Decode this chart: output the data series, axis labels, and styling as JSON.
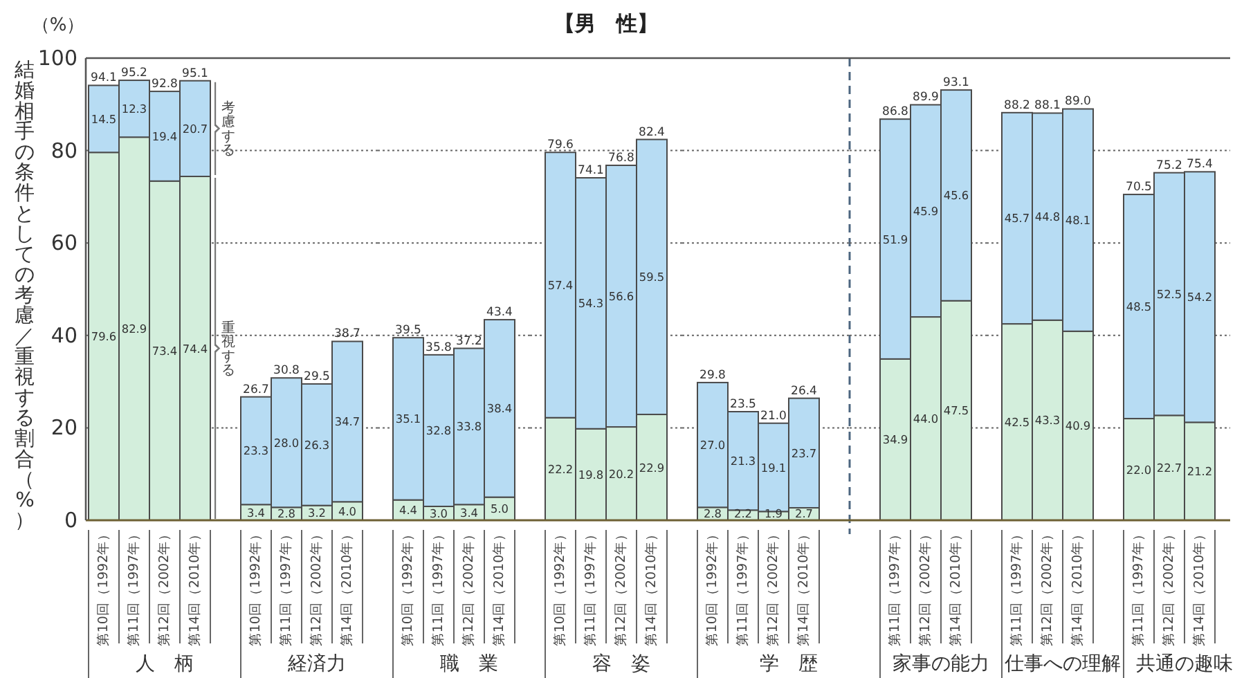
{
  "chart_data": [
    {
      "type": "bar",
      "ylabel": "結婚相手の条件としての考慮／重視する割合（%）",
      "xlabel": "人　柄",
      "annotations": [
        "（%）"
      ],
      "categories": [
        "第10回（1992年）",
        "第11回（1997年）",
        "第12回（2002年）",
        "第14回（2010年）"
      ],
      "series": [
        {
          "name": "重視する",
          "color": "#d3eedc",
          "values": [
            79.6,
            82.9,
            73.4,
            74.4
          ],
          "value_labels": [
            "79.6",
            "82.9",
            "73.4",
            "74.4"
          ]
        },
        {
          "name": "考慮する",
          "color": "#b7dcf3",
          "values": [
            14.5,
            12.3,
            19.4,
            20.7
          ],
          "value_labels": [
            "14.5",
            "12.3",
            "19.4",
            "20.7"
          ]
        }
      ],
      "stacked": true,
      "ylim": [
        0,
        100
      ],
      "yticks": [
        0,
        20,
        40,
        60,
        80,
        100
      ],
      "grid": "y",
      "totals": [
        "94.1",
        "95.2",
        "92.8",
        "95.1"
      ]
    },
    {
      "type": "bar",
      "xlabel": "経済力",
      "categories": [
        "第10回（1992年）",
        "第11回（1997年）",
        "第12回（2002年）",
        "第14回（2010年）"
      ],
      "series": [
        {
          "color": "#d3eedc",
          "values": [
            3.4,
            2.8,
            3.2,
            4.0
          ],
          "value_labels": [
            "3.4",
            "2.8",
            "3.2",
            "4.0"
          ]
        },
        {
          "color": "#b7dcf3",
          "values": [
            23.3,
            28.0,
            26.3,
            34.7
          ],
          "value_labels": [
            "23.3",
            "28.0",
            "26.3",
            "34.7"
          ]
        }
      ],
      "stacked": true,
      "ylim": [
        0,
        100
      ],
      "yticks": [
        0,
        20,
        40,
        60,
        80,
        100
      ],
      "grid": "y",
      "tick_labels": "x",
      "totals": [
        "26.7",
        "30.8",
        "29.5",
        "38.7"
      ]
    },
    {
      "type": "bar",
      "xlabel": "職　業",
      "categories": [
        "第10回（1992年）",
        "第11回（1997年）",
        "第12回（2002年）",
        "第14回（2010年）"
      ],
      "series": [
        {
          "color": "#d3eedc",
          "values": [
            4.4,
            3.0,
            3.4,
            5.0
          ],
          "value_labels": [
            "4.4",
            "3.0",
            "3.4",
            "5.0"
          ]
        },
        {
          "color": "#b7dcf3",
          "values": [
            35.1,
            32.8,
            33.8,
            38.4
          ],
          "value_labels": [
            "35.1",
            "32.8",
            "33.8",
            "38.4"
          ]
        }
      ],
      "stacked": true,
      "ylim": [
        0,
        100
      ],
      "yticks": [
        0,
        20,
        40,
        60,
        80,
        100
      ],
      "grid": "y",
      "tick_labels": "x",
      "totals": [
        "39.5",
        "35.8",
        "37.2",
        "43.4"
      ]
    },
    {
      "type": "bar",
      "title": "【男　性】",
      "xlabel": "容　姿",
      "categories": [
        "第10回（1992年）",
        "第11回（1997年）",
        "第12回（2002年）",
        "第14回（2010年）"
      ],
      "series": [
        {
          "color": "#d3eedc",
          "values": [
            22.2,
            19.8,
            20.2,
            22.9
          ],
          "value_labels": [
            "22.2",
            "19.8",
            "20.2",
            "22.9"
          ]
        },
        {
          "color": "#b7dcf3",
          "values": [
            57.4,
            54.3,
            56.6,
            59.5
          ],
          "value_labels": [
            "57.4",
            "54.3",
            "56.6",
            "59.5"
          ]
        }
      ],
      "stacked": true,
      "ylim": [
        0,
        100
      ],
      "yticks": [
        0,
        20,
        40,
        60,
        80,
        100
      ],
      "grid": "y",
      "tick_labels": "x",
      "totals": [
        "79.6",
        "74.1",
        "76.8",
        "82.4"
      ]
    },
    {
      "type": "bar",
      "xlabel": "学　歴",
      "categories": [
        "第10回（1992年）",
        "第11回（1997年）",
        "第12回（2002年）",
        "第14回（2010年）"
      ],
      "series": [
        {
          "color": "#d3eedc",
          "values": [
            2.8,
            2.2,
            1.9,
            2.7
          ],
          "value_labels": [
            "2.8",
            "2.2",
            "1.9",
            "2.7"
          ]
        },
        {
          "color": "#b7dcf3",
          "values": [
            27.0,
            21.3,
            19.1,
            23.7
          ],
          "value_labels": [
            "27.0",
            "21.3",
            "19.1",
            "23.7"
          ]
        }
      ],
      "stacked": true,
      "ylim": [
        0,
        100
      ],
      "yticks": [
        0,
        20,
        40,
        60,
        80,
        100
      ],
      "grid": "y",
      "tick_labels": "x",
      "totals": [
        "29.8",
        "23.5",
        "21.0",
        "26.4"
      ]
    },
    {
      "type": "bar",
      "xlabel": "家事の能力",
      "categories": [
        "第11回（1997年）",
        "第12回（2002年）",
        "第14回（2010年）"
      ],
      "series": [
        {
          "color": "#d3eedc",
          "values": [
            34.9,
            44.0,
            47.5
          ],
          "value_labels": [
            "34.9",
            "44.0",
            "47.5"
          ]
        },
        {
          "color": "#b7dcf3",
          "values": [
            51.9,
            45.9,
            45.6
          ],
          "value_labels": [
            "51.9",
            "45.9",
            "45.6"
          ]
        }
      ],
      "stacked": true,
      "ylim": [
        0,
        100
      ],
      "yticks": [
        0,
        20,
        40,
        60,
        80,
        100
      ],
      "grid": "y",
      "tick_labels": "x",
      "totals": [
        "86.8",
        "89.9",
        "93.1"
      ]
    },
    {
      "type": "bar",
      "xlabel": "仕事への理解",
      "categories": [
        "第11回（1997年）",
        "第12回（2002年）",
        "第14回（2010年）"
      ],
      "series": [
        {
          "color": "#d3eedc",
          "values": [
            42.5,
            43.3,
            40.9
          ],
          "value_labels": [
            "42.5",
            "43.3",
            "40.9"
          ]
        },
        {
          "color": "#b7dcf3",
          "values": [
            45.7,
            44.8,
            48.1
          ],
          "value_labels": [
            "45.7",
            "44.8",
            "48.1"
          ]
        }
      ],
      "stacked": true,
      "ylim": [
        0,
        100
      ],
      "yticks": [
        0,
        20,
        40,
        60,
        80,
        100
      ],
      "grid": "y",
      "tick_labels": "x",
      "totals": [
        "88.2",
        "88.1",
        "89.0"
      ]
    },
    {
      "type": "bar",
      "xlabel": "共通の趣味",
      "categories": [
        "第11回（1997年）",
        "第12回（2002年）",
        "第14回（2010年）"
      ],
      "series": [
        {
          "color": "#d3eedc",
          "values": [
            22.0,
            22.7,
            21.2
          ],
          "value_labels": [
            "22.0",
            "22.7",
            "21.2"
          ]
        },
        {
          "color": "#b7dcf3",
          "values": [
            48.5,
            52.5,
            54.2
          ],
          "value_labels": [
            "48.5",
            "52.5",
            "54.2"
          ]
        }
      ],
      "stacked": true,
      "ylim": [
        0,
        100
      ],
      "yticks": [
        0,
        20,
        40,
        60,
        80,
        100
      ],
      "grid": "y",
      "tick_labels": "x",
      "totals": [
        "70.5",
        "75.2",
        "75.4"
      ]
    }
  ]
}
